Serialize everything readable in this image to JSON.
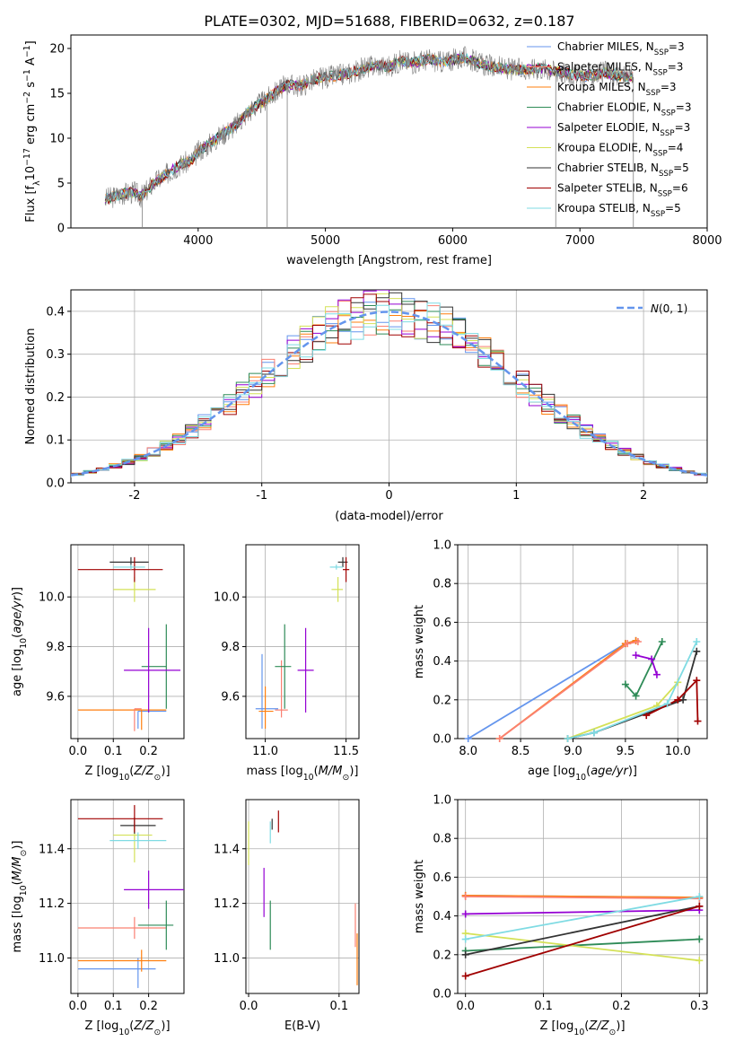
{
  "figure_title": "PLATE=0302, MJD=51688, FIBERID=0632, z=0.187",
  "legend_colors": [
    "#6495ed",
    "#fa8072",
    "#ff7f0e",
    "#2e8b57",
    "#9400d3",
    "#d4e157",
    "#333333",
    "#a00000",
    "#7fdbe3"
  ],
  "chart_data": [
    {
      "id": "spectrum",
      "type": "line",
      "xlabel": "wavelength [Angstrom, rest frame]",
      "ylabel": "Flux [f_λ 10^-17 erg cm^-2 s^-1 A^-1]",
      "xlim": [
        3000,
        8000
      ],
      "ylim": [
        0,
        21.5
      ],
      "xticks": [
        4000,
        5000,
        6000,
        7000,
        8000
      ],
      "yticks": [
        0,
        5,
        10,
        15,
        20
      ],
      "grid": false,
      "legend_position": "top-right",
      "data_series": {
        "name": "data",
        "color": "#808080",
        "x": [
          3270,
          3400,
          3500,
          3550,
          3650,
          3750,
          3850,
          3950,
          4000,
          4100,
          4200,
          4300,
          4400,
          4500,
          4600,
          4700,
          4800,
          4900,
          5000,
          5100,
          5200,
          5300,
          5400,
          5500,
          5600,
          5700,
          5800,
          5900,
          6000,
          6100,
          6200,
          6300,
          6400,
          6500,
          6600,
          6700,
          6800,
          6900,
          7000,
          7100,
          7200,
          7300,
          7400
        ],
        "y": [
          3.2,
          3.8,
          4.0,
          3.5,
          5.0,
          6.0,
          7.0,
          7.5,
          8.5,
          9.5,
          10.5,
          11.5,
          13.0,
          14.0,
          15.0,
          16.0,
          15.8,
          16.5,
          16.8,
          17.0,
          17.3,
          17.8,
          18.2,
          18.0,
          18.6,
          18.4,
          18.8,
          18.5,
          18.7,
          19.0,
          18.4,
          18.0,
          17.8,
          17.6,
          17.7,
          17.8,
          17.5,
          17.2,
          16.9,
          17.0,
          17.3,
          17.0,
          16.8
        ]
      },
      "series": [
        {
          "name": "Chabrier MILES, N_SSP=3",
          "color": "#6495ed",
          "linestyle": "solid"
        },
        {
          "name": "Salpeter MILES, N_SSP=3",
          "color": "#fa8072",
          "linestyle": "solid"
        },
        {
          "name": "Kroupa MILES, N_SSP=3",
          "color": "#ff7f0e",
          "linestyle": "solid"
        },
        {
          "name": "Chabrier ELODIE, N_SSP=3",
          "color": "#2e8b57",
          "linestyle": "solid"
        },
        {
          "name": "Salpeter ELODIE, N_SSP=3",
          "color": "#9400d3",
          "linestyle": "solid"
        },
        {
          "name": "Kroupa ELODIE, N_SSP=4",
          "color": "#d4e157",
          "linestyle": "solid"
        },
        {
          "name": "Chabrier STELIB, N_SSP=5",
          "color": "#333333",
          "linestyle": "solid"
        },
        {
          "name": "Salpeter STELIB, N_SSP=6",
          "color": "#a00000",
          "linestyle": "solid"
        },
        {
          "name": "Kroupa STELIB, N_SSP=5",
          "color": "#7fdbe3",
          "linestyle": "solid"
        }
      ],
      "legend_entries": [
        {
          "label": "Chabrier MILES, N",
          "sub": "SSP",
          "tail": "=3"
        },
        {
          "label": "Salpeter MILES, N",
          "sub": "SSP",
          "tail": "=3"
        },
        {
          "label": "Kroupa MILES, N",
          "sub": "SSP",
          "tail": "=3"
        },
        {
          "label": "Chabrier ELODIE, N",
          "sub": "SSP",
          "tail": "=3"
        },
        {
          "label": "Salpeter ELODIE, N",
          "sub": "SSP",
          "tail": "=3"
        },
        {
          "label": "Kroupa ELODIE, N",
          "sub": "SSP",
          "tail": "=4"
        },
        {
          "label": "Chabrier STELIB, N",
          "sub": "SSP",
          "tail": "=5"
        },
        {
          "label": "Salpeter STELIB, N",
          "sub": "SSP",
          "tail": "=6"
        },
        {
          "label": "Kroupa STELIB, N",
          "sub": "SSP",
          "tail": "=5"
        }
      ]
    },
    {
      "id": "residuals",
      "type": "line",
      "xlabel": "(data-model)/error",
      "ylabel": "Normed distribution",
      "xlim": [
        -2.5,
        2.5
      ],
      "ylim": [
        0,
        0.45
      ],
      "xticks": [
        -2,
        -1,
        0,
        1,
        2
      ],
      "yticks": [
        0.0,
        0.1,
        0.2,
        0.3,
        0.4
      ],
      "grid": true,
      "legend_position": "top-right",
      "gaussian": {
        "name": "N(0,1)",
        "color": "#6495ed",
        "linestyle": "dashed"
      }
    },
    {
      "id": "age_vs_Z",
      "type": "scatter",
      "xlabel": "Z [log10(Z/Z_sun)]",
      "ylabel": "age [log10(age/yr)]",
      "xlim": [
        -0.02,
        0.3
      ],
      "ylim": [
        9.43,
        10.21
      ],
      "xticks": [
        0.0,
        0.1,
        0.2
      ],
      "yticks": [
        9.6,
        9.8,
        10.0
      ],
      "grid": true,
      "points": [
        {
          "x": 0.17,
          "y": 9.54,
          "xerr": [
            0.0,
            0.08
          ],
          "yerr": [
            0.07,
            0.0
          ],
          "color": "#6495ed"
        },
        {
          "x": 0.18,
          "y": 9.545,
          "xerr": [
            0.18,
            0.07
          ],
          "yerr": [
            0.08,
            0.0
          ],
          "color": "#ff7f0e"
        },
        {
          "x": 0.16,
          "y": 9.55,
          "xerr": [
            0.0,
            0.02
          ],
          "yerr": [
            0.09,
            0.0
          ],
          "color": "#fa8072"
        },
        {
          "x": 0.25,
          "y": 9.72,
          "xerr": [
            0.07,
            0.0
          ],
          "yerr": [
            0.17,
            0.17
          ],
          "color": "#2e8b57"
        },
        {
          "x": 0.2,
          "y": 9.705,
          "xerr": [
            0.07,
            0.09
          ],
          "yerr": [
            0.17,
            0.17
          ],
          "color": "#9400d3"
        },
        {
          "x": 0.16,
          "y": 10.03,
          "xerr": [
            0.06,
            0.06
          ],
          "yerr": [
            0.05,
            0.05
          ],
          "color": "#d4e157"
        },
        {
          "x": 0.15,
          "y": 10.14,
          "xerr": [
            0.06,
            0.05
          ],
          "yerr": [
            0.02,
            0.02
          ],
          "color": "#333333"
        },
        {
          "x": 0.16,
          "y": 10.11,
          "xerr": [
            0.16,
            0.08
          ],
          "yerr": [
            0.05,
            0.05
          ],
          "color": "#a00000"
        },
        {
          "x": 0.15,
          "y": 10.12,
          "xerr": [
            0.05,
            0.04
          ],
          "yerr": [
            0.01,
            0.01
          ],
          "color": "#7fdbe3"
        }
      ]
    },
    {
      "id": "age_vs_mass",
      "type": "scatter",
      "xlabel": "mass [log10(M/M_sun)]",
      "ylabel": "",
      "xlim": [
        10.88,
        11.58
      ],
      "ylim": [
        9.43,
        10.21
      ],
      "xticks": [
        11.0,
        11.5
      ],
      "yticks": [
        9.6,
        9.8,
        10.0
      ],
      "grid": true,
      "points": [
        {
          "x": 10.98,
          "y": 9.55,
          "xerr": [
            0.04,
            0.1
          ],
          "yerr": [
            0.08,
            0.22
          ],
          "color": "#6495ed"
        },
        {
          "x": 11.0,
          "y": 9.54,
          "xerr": [
            0.04,
            0.05
          ],
          "yerr": [
            0.07,
            0.1
          ],
          "color": "#ff7f0e"
        },
        {
          "x": 11.1,
          "y": 9.545,
          "xerr": [
            0.04,
            0.04
          ],
          "yerr": [
            0.03,
            0.2
          ],
          "color": "#fa8072"
        },
        {
          "x": 11.12,
          "y": 9.72,
          "xerr": [
            0.06,
            0.04
          ],
          "yerr": [
            0.17,
            0.17
          ],
          "color": "#2e8b57"
        },
        {
          "x": 11.25,
          "y": 9.705,
          "xerr": [
            0.05,
            0.05
          ],
          "yerr": [
            0.17,
            0.17
          ],
          "color": "#9400d3"
        },
        {
          "x": 11.45,
          "y": 10.03,
          "xerr": [
            0.04,
            0.03
          ],
          "yerr": [
            0.05,
            0.05
          ],
          "color": "#d4e157"
        },
        {
          "x": 11.48,
          "y": 10.14,
          "xerr": [
            0.03,
            0.03
          ],
          "yerr": [
            0.02,
            0.02
          ],
          "color": "#333333"
        },
        {
          "x": 11.5,
          "y": 10.11,
          "xerr": [
            0.02,
            0.02
          ],
          "yerr": [
            0.05,
            0.05
          ],
          "color": "#a00000"
        },
        {
          "x": 11.44,
          "y": 10.12,
          "xerr": [
            0.04,
            0.04
          ],
          "yerr": [
            0.01,
            0.01
          ],
          "color": "#7fdbe3"
        }
      ]
    },
    {
      "id": "massweight_vs_age",
      "type": "line",
      "xlabel": "age [log10(age/yr)]",
      "ylabel": "mass weight",
      "xlim": [
        7.9,
        10.28
      ],
      "ylim": [
        0,
        1.0
      ],
      "xticks": [
        8.0,
        8.5,
        9.0,
        9.5,
        10.0
      ],
      "yticks": [
        0.0,
        0.2,
        0.4,
        0.6,
        0.8,
        1.0
      ],
      "grid": true,
      "series": [
        {
          "color": "#6495ed",
          "x": [
            8.0,
            9.5,
            9.6
          ],
          "y": [
            0.0,
            0.49,
            0.505
          ]
        },
        {
          "color": "#ff7f0e",
          "x": [
            8.3,
            9.5,
            9.6
          ],
          "y": [
            0.0,
            0.49,
            0.505
          ]
        },
        {
          "color": "#fa8072",
          "x": [
            8.3,
            9.52,
            9.62
          ],
          "y": [
            0.0,
            0.49,
            0.5
          ]
        },
        {
          "color": "#2e8b57",
          "x": [
            9.5,
            9.6,
            9.85
          ],
          "y": [
            0.28,
            0.22,
            0.5
          ]
        },
        {
          "color": "#9400d3",
          "x": [
            9.6,
            9.75,
            9.8
          ],
          "y": [
            0.43,
            0.41,
            0.33
          ]
        },
        {
          "color": "#d4e157",
          "x": [
            8.95,
            9.8,
            10.0
          ],
          "y": [
            0.0,
            0.17,
            0.29
          ]
        },
        {
          "color": "#333333",
          "x": [
            8.95,
            9.2,
            10.05,
            10.18
          ],
          "y": [
            0.0,
            0.03,
            0.2,
            0.45
          ]
        },
        {
          "color": "#a00000",
          "x": [
            9.7,
            10.0,
            10.18,
            10.19
          ],
          "y": [
            0.12,
            0.2,
            0.3,
            0.09
          ]
        },
        {
          "color": "#7fdbe3",
          "x": [
            8.95,
            9.2,
            9.9,
            10.18
          ],
          "y": [
            0.0,
            0.03,
            0.18,
            0.5
          ]
        }
      ]
    },
    {
      "id": "mass_vs_Z",
      "type": "scatter",
      "xlabel": "Z [log10(Z/Z_sun)]",
      "ylabel": "mass [log10(M/M_sun)]",
      "xlim": [
        -0.02,
        0.3
      ],
      "ylim": [
        10.87,
        11.58
      ],
      "xticks": [
        0.0,
        0.1,
        0.2
      ],
      "yticks": [
        11.0,
        11.2,
        11.4
      ],
      "grid": true,
      "points": [
        {
          "x": 0.17,
          "y": 10.96,
          "xerr": [
            0.17,
            0.05
          ],
          "yerr": [
            0.07,
            0.04
          ],
          "color": "#6495ed"
        },
        {
          "x": 0.18,
          "y": 10.99,
          "xerr": [
            0.18,
            0.07
          ],
          "yerr": [
            0.04,
            0.04
          ],
          "color": "#ff7f0e"
        },
        {
          "x": 0.16,
          "y": 11.11,
          "xerr": [
            0.16,
            0.09
          ],
          "yerr": [
            0.04,
            0.04
          ],
          "color": "#fa8072"
        },
        {
          "x": 0.25,
          "y": 11.12,
          "xerr": [
            0.08,
            0.02
          ],
          "yerr": [
            0.09,
            0.09
          ],
          "color": "#2e8b57"
        },
        {
          "x": 0.2,
          "y": 11.25,
          "xerr": [
            0.07,
            0.1
          ],
          "yerr": [
            0.07,
            0.07
          ],
          "color": "#9400d3"
        },
        {
          "x": 0.16,
          "y": 11.45,
          "xerr": [
            0.06,
            0.05
          ],
          "yerr": [
            0.1,
            0.03
          ],
          "color": "#d4e157"
        },
        {
          "x": 0.16,
          "y": 11.485,
          "xerr": [
            0.04,
            0.06
          ],
          "yerr": [
            0.03,
            0.03
          ],
          "color": "#333333"
        },
        {
          "x": 0.16,
          "y": 11.51,
          "xerr": [
            0.16,
            0.08
          ],
          "yerr": [
            0.05,
            0.05
          ],
          "color": "#a00000"
        },
        {
          "x": 0.17,
          "y": 11.43,
          "xerr": [
            0.08,
            0.08
          ],
          "yerr": [
            0.03,
            0.03
          ],
          "color": "#7fdbe3"
        }
      ]
    },
    {
      "id": "mass_vs_ebv",
      "type": "scatter",
      "xlabel": "E(B-V)",
      "ylabel": "",
      "xlim": [
        -0.003,
        0.122
      ],
      "ylim": [
        10.87,
        11.58
      ],
      "xticks": [
        0.0,
        0.1
      ],
      "yticks": [
        11.0,
        11.2,
        11.4
      ],
      "grid": true,
      "points": [
        {
          "x": 0.12,
          "y": 11.03,
          "yerr": [
            0.13,
            0.06
          ],
          "color": "#ff7f0e"
        },
        {
          "x": 0.118,
          "y": 11.12,
          "yerr": [
            0.08,
            0.08
          ],
          "color": "#fa8072"
        },
        {
          "x": 0.0,
          "y": 11.42,
          "yerr": [
            0.08,
            0.08
          ],
          "color": "#d4e157"
        },
        {
          "x": 0.017,
          "y": 11.24,
          "yerr": [
            0.09,
            0.09
          ],
          "color": "#9400d3"
        },
        {
          "x": 0.024,
          "y": 11.12,
          "yerr": [
            0.09,
            0.09
          ],
          "color": "#2e8b57"
        },
        {
          "x": 0.024,
          "y": 11.46,
          "yerr": [
            0.04,
            0.04
          ],
          "color": "#7fdbe3"
        },
        {
          "x": 0.026,
          "y": 11.49,
          "yerr": [
            0.02,
            0.02
          ],
          "color": "#333333"
        },
        {
          "x": 0.033,
          "y": 11.5,
          "yerr": [
            0.04,
            0.04
          ],
          "color": "#a00000"
        }
      ]
    },
    {
      "id": "massweight_vs_Z",
      "type": "line",
      "xlabel": "Z [log10(Z/Z_sun)]",
      "ylabel": "mass weight",
      "xlim": [
        -0.01,
        0.31
      ],
      "ylim": [
        0,
        1.0
      ],
      "xticks": [
        0.0,
        0.1,
        0.2,
        0.3
      ],
      "yticks": [
        0.0,
        0.2,
        0.4,
        0.6,
        0.8,
        1.0
      ],
      "grid": true,
      "series": [
        {
          "color": "#6495ed",
          "x": [
            0.0,
            0.3
          ],
          "y": [
            0.505,
            0.495
          ]
        },
        {
          "color": "#ff7f0e",
          "x": [
            0.0,
            0.3
          ],
          "y": [
            0.505,
            0.495
          ]
        },
        {
          "color": "#fa8072",
          "x": [
            0.0,
            0.3
          ],
          "y": [
            0.5,
            0.49
          ]
        },
        {
          "color": "#2e8b57",
          "x": [
            0.0,
            0.3
          ],
          "y": [
            0.22,
            0.28
          ]
        },
        {
          "color": "#9400d3",
          "x": [
            0.0,
            0.3
          ],
          "y": [
            0.41,
            0.43
          ]
        },
        {
          "color": "#d4e157",
          "x": [
            0.0,
            0.3
          ],
          "y": [
            0.31,
            0.17
          ]
        },
        {
          "color": "#333333",
          "x": [
            0.0,
            0.3
          ],
          "y": [
            0.2,
            0.45
          ]
        },
        {
          "color": "#a00000",
          "x": [
            0.0,
            0.3
          ],
          "y": [
            0.09,
            0.45
          ]
        },
        {
          "color": "#7fdbe3",
          "x": [
            0.0,
            0.3
          ],
          "y": [
            0.28,
            0.5
          ]
        }
      ]
    }
  ]
}
